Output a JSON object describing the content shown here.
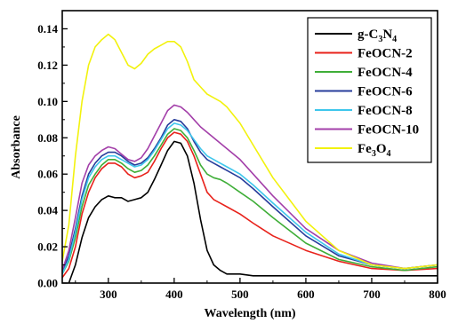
{
  "chart_data": {
    "type": "line",
    "title": "",
    "xlabel": "Wavelength (nm)",
    "ylabel": "Absorbance",
    "xlim": [
      230,
      800
    ],
    "ylim": [
      0,
      0.15
    ],
    "xticks": [
      300,
      400,
      500,
      600,
      700,
      800
    ],
    "yticks": [
      0.0,
      0.02,
      0.04,
      0.06,
      0.08,
      0.1,
      0.12,
      0.14
    ],
    "ytick_labels": [
      "0.00",
      "0.02",
      "0.04",
      "0.06",
      "0.08",
      "0.10",
      "0.12",
      "0.14"
    ],
    "grid": false,
    "legend_position": "top-right",
    "series": [
      {
        "name": "g-C3N4",
        "label_main": "g-C",
        "label_sub1": "3",
        "label_mid": "N",
        "label_sub2": "4",
        "color": "#000000",
        "x": [
          240,
          250,
          260,
          270,
          280,
          290,
          300,
          310,
          320,
          330,
          340,
          350,
          360,
          370,
          380,
          390,
          400,
          410,
          420,
          430,
          440,
          450,
          460,
          470,
          480,
          500,
          520,
          550,
          600,
          650,
          700,
          750,
          800
        ],
        "y": [
          0.0,
          0.01,
          0.025,
          0.036,
          0.042,
          0.046,
          0.048,
          0.047,
          0.047,
          0.045,
          0.046,
          0.047,
          0.05,
          0.057,
          0.065,
          0.073,
          0.078,
          0.077,
          0.07,
          0.055,
          0.035,
          0.018,
          0.01,
          0.007,
          0.005,
          0.005,
          0.004,
          0.004,
          0.004,
          0.004,
          0.004,
          0.004,
          0.004
        ]
      },
      {
        "name": "FeOCN-2",
        "color": "#e8221b",
        "x": [
          230,
          240,
          250,
          260,
          270,
          280,
          290,
          300,
          310,
          320,
          330,
          340,
          350,
          360,
          370,
          380,
          390,
          400,
          410,
          420,
          430,
          440,
          450,
          460,
          470,
          480,
          500,
          520,
          550,
          600,
          650,
          700,
          750,
          800
        ],
        "y": [
          0.003,
          0.008,
          0.02,
          0.038,
          0.05,
          0.058,
          0.063,
          0.066,
          0.066,
          0.064,
          0.06,
          0.058,
          0.059,
          0.061,
          0.067,
          0.074,
          0.08,
          0.083,
          0.082,
          0.078,
          0.07,
          0.06,
          0.05,
          0.046,
          0.044,
          0.042,
          0.038,
          0.033,
          0.026,
          0.018,
          0.012,
          0.008,
          0.007,
          0.008
        ]
      },
      {
        "name": "FeOCN-4",
        "color": "#3fae38",
        "x": [
          230,
          240,
          250,
          260,
          270,
          280,
          290,
          300,
          310,
          320,
          330,
          340,
          350,
          360,
          370,
          380,
          390,
          400,
          410,
          420,
          430,
          440,
          450,
          460,
          470,
          480,
          500,
          520,
          550,
          600,
          650,
          700,
          750,
          800
        ],
        "y": [
          0.005,
          0.012,
          0.025,
          0.042,
          0.054,
          0.06,
          0.065,
          0.068,
          0.068,
          0.066,
          0.063,
          0.061,
          0.062,
          0.065,
          0.07,
          0.076,
          0.082,
          0.085,
          0.084,
          0.08,
          0.073,
          0.065,
          0.06,
          0.058,
          0.057,
          0.055,
          0.05,
          0.045,
          0.036,
          0.022,
          0.013,
          0.009,
          0.007,
          0.009
        ]
      },
      {
        "name": "FeOCN-6",
        "color": "#273d9b",
        "x": [
          230,
          240,
          250,
          260,
          270,
          280,
          290,
          300,
          310,
          320,
          330,
          340,
          350,
          360,
          370,
          380,
          390,
          400,
          410,
          420,
          430,
          440,
          450,
          460,
          470,
          480,
          500,
          520,
          550,
          600,
          650,
          700,
          750,
          800
        ],
        "y": [
          0.006,
          0.015,
          0.03,
          0.048,
          0.06,
          0.066,
          0.07,
          0.072,
          0.072,
          0.07,
          0.067,
          0.065,
          0.066,
          0.069,
          0.074,
          0.08,
          0.087,
          0.09,
          0.089,
          0.085,
          0.078,
          0.072,
          0.068,
          0.066,
          0.064,
          0.062,
          0.058,
          0.052,
          0.042,
          0.026,
          0.015,
          0.01,
          0.008,
          0.01
        ]
      },
      {
        "name": "FeOCN-8",
        "color": "#3ec6ec",
        "x": [
          230,
          240,
          250,
          260,
          270,
          280,
          290,
          300,
          310,
          320,
          330,
          340,
          350,
          360,
          370,
          380,
          390,
          400,
          410,
          420,
          430,
          440,
          450,
          460,
          470,
          480,
          500,
          520,
          550,
          600,
          650,
          700,
          750,
          800
        ],
        "y": [
          0.005,
          0.013,
          0.028,
          0.046,
          0.058,
          0.064,
          0.068,
          0.07,
          0.07,
          0.068,
          0.066,
          0.064,
          0.065,
          0.068,
          0.073,
          0.079,
          0.085,
          0.088,
          0.087,
          0.084,
          0.079,
          0.074,
          0.07,
          0.068,
          0.066,
          0.064,
          0.06,
          0.054,
          0.044,
          0.028,
          0.016,
          0.01,
          0.008,
          0.01
        ]
      },
      {
        "name": "FeOCN-10",
        "color": "#a33fa9",
        "x": [
          230,
          240,
          250,
          260,
          270,
          280,
          290,
          300,
          310,
          320,
          330,
          340,
          350,
          360,
          370,
          380,
          390,
          400,
          410,
          420,
          430,
          440,
          450,
          460,
          470,
          480,
          500,
          520,
          550,
          600,
          650,
          700,
          750,
          800
        ],
        "y": [
          0.007,
          0.018,
          0.036,
          0.055,
          0.065,
          0.07,
          0.073,
          0.075,
          0.074,
          0.071,
          0.068,
          0.067,
          0.069,
          0.074,
          0.081,
          0.088,
          0.095,
          0.098,
          0.097,
          0.094,
          0.09,
          0.086,
          0.083,
          0.08,
          0.077,
          0.074,
          0.068,
          0.06,
          0.048,
          0.03,
          0.018,
          0.011,
          0.008,
          0.01
        ]
      },
      {
        "name": "Fe3O4",
        "label_main": "Fe",
        "label_sub1": "3",
        "label_mid": "O",
        "label_sub2": "4",
        "color": "#f2f20d",
        "x": [
          230,
          240,
          250,
          260,
          270,
          280,
          290,
          300,
          310,
          320,
          330,
          340,
          350,
          360,
          370,
          380,
          390,
          400,
          410,
          420,
          430,
          440,
          450,
          460,
          470,
          480,
          500,
          520,
          550,
          600,
          650,
          700,
          750,
          800
        ],
        "y": [
          0.012,
          0.032,
          0.07,
          0.1,
          0.12,
          0.13,
          0.134,
          0.137,
          0.134,
          0.127,
          0.12,
          0.118,
          0.121,
          0.126,
          0.129,
          0.131,
          0.133,
          0.133,
          0.13,
          0.122,
          0.112,
          0.108,
          0.104,
          0.102,
          0.1,
          0.097,
          0.088,
          0.076,
          0.058,
          0.034,
          0.018,
          0.01,
          0.008,
          0.01
        ]
      }
    ]
  }
}
